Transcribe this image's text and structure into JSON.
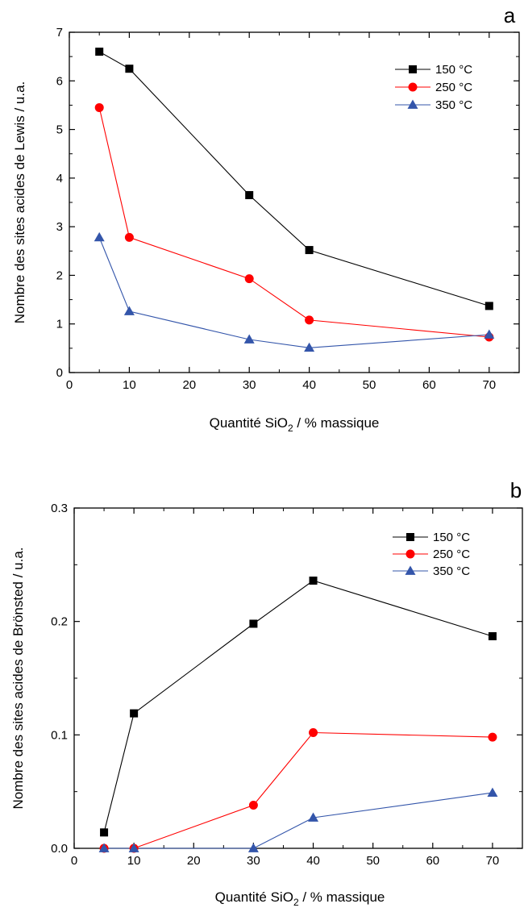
{
  "chart_data": [
    {
      "type": "line",
      "panel_label": "a",
      "xlabel": "Quantité SiO₂ / % massique",
      "xlabel_parts": [
        "Quantité SiO",
        "2",
        " / % massique"
      ],
      "ylabel": "Nombre des sites acides de Lewis / u.a.",
      "xlim": [
        0,
        75
      ],
      "ylim": [
        0,
        7
      ],
      "xticks": [
        0,
        10,
        20,
        30,
        40,
        50,
        60,
        70
      ],
      "yticks": [
        0,
        1,
        2,
        3,
        4,
        5,
        6,
        7
      ],
      "ytick_labels": [
        "0",
        "1",
        "2",
        "3",
        "4",
        "5",
        "6",
        "7"
      ],
      "legend_position": "top-right",
      "grid": false,
      "x": [
        5,
        10,
        30,
        40,
        70
      ],
      "series": [
        {
          "name": "150 °C",
          "marker": "square",
          "color": "#000000",
          "values": [
            6.6,
            6.25,
            3.65,
            2.52,
            1.37
          ]
        },
        {
          "name": "250 °C",
          "marker": "circle",
          "color": "#ff0000",
          "values": [
            5.45,
            2.78,
            1.93,
            1.08,
            0.73
          ]
        },
        {
          "name": "350 °C",
          "marker": "triangle",
          "color": "#3355aa",
          "values": [
            2.78,
            1.26,
            0.68,
            0.51,
            0.78
          ]
        }
      ]
    },
    {
      "type": "line",
      "panel_label": "b",
      "xlabel": "Quantité SiO₂ / % massique",
      "xlabel_parts": [
        "Quantité SiO",
        "2",
        " / % massique"
      ],
      "ylabel": "Nombre des sites acides de Brönsted / u.a.",
      "xlim": [
        0,
        75
      ],
      "ylim": [
        0,
        0.3
      ],
      "xticks": [
        0,
        10,
        20,
        30,
        40,
        50,
        60,
        70
      ],
      "yticks": [
        0,
        0.1,
        0.2,
        0.3
      ],
      "ytick_labels": [
        "0.0",
        "0.1",
        "0.2",
        "0.3"
      ],
      "legend_position": "top-right",
      "grid": false,
      "x": [
        5,
        10,
        30,
        40,
        70
      ],
      "series": [
        {
          "name": "150 °C",
          "marker": "square",
          "color": "#000000",
          "values": [
            0.014,
            0.119,
            0.198,
            0.236,
            0.187
          ]
        },
        {
          "name": "250 °C",
          "marker": "circle",
          "color": "#ff0000",
          "values": [
            0.0,
            0.0,
            0.038,
            0.102,
            0.098
          ]
        },
        {
          "name": "350 °C",
          "marker": "triangle",
          "color": "#3355aa",
          "values": [
            0.0,
            0.0,
            0.0,
            0.027,
            0.049
          ]
        }
      ]
    }
  ]
}
